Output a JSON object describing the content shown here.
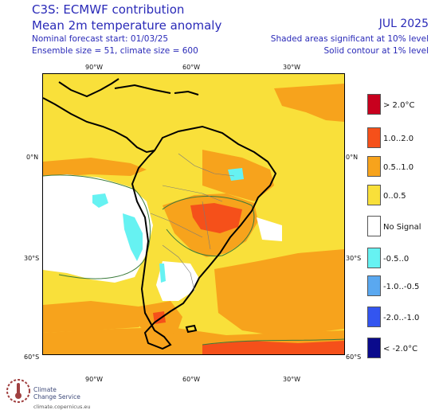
{
  "header": {
    "line1": "C3S: ECMWF contribution",
    "line2": "Mean 2m temperature anomaly",
    "meta1": "Nominal forecast start: 01/03/25",
    "meta2": "Ensemble size = 51, climate size = 600",
    "date": "JUL 2025",
    "note1": "Shaded areas significant at 10% level",
    "note2": "Solid contour at 1% level"
  },
  "axes": {
    "top": [
      "90°W",
      "60°W",
      "30°W"
    ],
    "bottom": [
      "90°W",
      "60°W",
      "30°W"
    ],
    "left": [
      "0°N",
      "30°S",
      "60°S"
    ],
    "right": [
      "0°N",
      "30°S",
      "60°S"
    ]
  },
  "legend": [
    {
      "label": "> 2.0°C",
      "color": "#c8001e"
    },
    {
      "label": "1.0..2.0",
      "color": "#f5501a"
    },
    {
      "label": "0.5..1.0",
      "color": "#f7a31c"
    },
    {
      "label": "0..0.5",
      "color": "#f9e03a"
    },
    {
      "label": "No Signal",
      "color": "#ffffff"
    },
    {
      "label": "-0.5..0",
      "color": "#66f2f2"
    },
    {
      "label": "-1.0..-0.5",
      "color": "#5aa8f0"
    },
    {
      "label": "-2.0..-1.0",
      "color": "#3355f0"
    },
    {
      "label": "< -2.0°C",
      "color": "#0a0a8c"
    }
  ],
  "logo": {
    "line1": "Climate",
    "line2": "Change Service",
    "url": "climate.copernicus.eu"
  },
  "icons": {
    "logo": "thermometer-circle-icon"
  }
}
